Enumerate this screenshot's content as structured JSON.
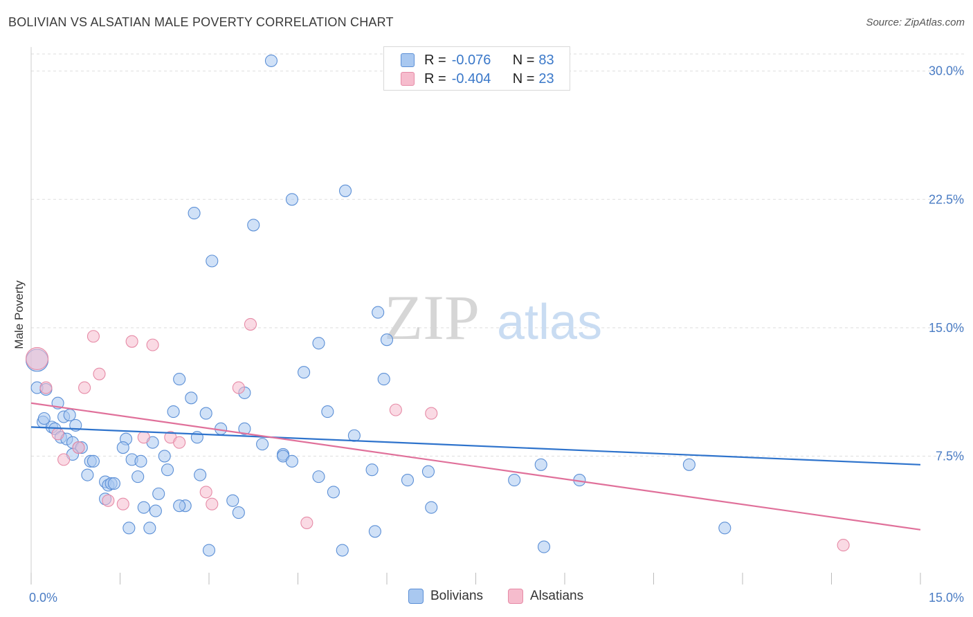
{
  "header": {
    "title": "BOLIVIAN VS ALSATIAN MALE POVERTY CORRELATION CHART",
    "source": "Source: ZipAtlas.com"
  },
  "watermark": {
    "zip": "ZIP",
    "atlas": "atlas"
  },
  "legend": {
    "rows": [
      {
        "r_label": "R =",
        "r_value": "-0.076",
        "n_label": "N =",
        "n_value": "83"
      },
      {
        "r_label": "R =",
        "r_value": "-0.404",
        "n_label": "N =",
        "n_value": "23"
      }
    ]
  },
  "bottom_legend": {
    "bolivians": "Bolivians",
    "alsatians": "Alsatians"
  },
  "colors": {
    "bolivians_fill": "#a9c8f0",
    "bolivians_stroke": "#5b8fd6",
    "bolivians_line": "#2e73cc",
    "alsatians_fill": "#f6bccd",
    "alsatians_stroke": "#e68aa6",
    "alsatians_line": "#e0709a",
    "tick_text": "#4a7cc4",
    "grid": "#dddddd"
  },
  "chart_data": {
    "type": "scatter",
    "title": "BOLIVIAN VS ALSATIAN MALE POVERTY CORRELATION CHART",
    "xlabel": "",
    "ylabel": "Male Poverty",
    "xlim": [
      0,
      15
    ],
    "ylim": [
      0,
      31
    ],
    "x_tick_labels": [
      "0.0%",
      "15.0%"
    ],
    "y_ticks": [
      7.5,
      15.0,
      22.5,
      30.0
    ],
    "y_tick_labels": [
      "7.5%",
      "15.0%",
      "22.5%",
      "30.0%"
    ],
    "grid": true,
    "series": [
      {
        "name": "Bolivians",
        "color": "#a9c8f0",
        "trend": {
          "x": [
            0,
            15
          ],
          "y": [
            9.2,
            7.0
          ]
        },
        "points": [
          {
            "x": 0.1,
            "y": 13.1,
            "big": true
          },
          {
            "x": 0.1,
            "y": 11.5
          },
          {
            "x": 0.25,
            "y": 11.4
          },
          {
            "x": 0.45,
            "y": 10.6
          },
          {
            "x": 0.2,
            "y": 9.5
          },
          {
            "x": 0.22,
            "y": 9.7
          },
          {
            "x": 0.35,
            "y": 9.2
          },
          {
            "x": 0.4,
            "y": 9.1
          },
          {
            "x": 0.55,
            "y": 9.8
          },
          {
            "x": 0.65,
            "y": 9.9
          },
          {
            "x": 0.75,
            "y": 9.3
          },
          {
            "x": 0.5,
            "y": 8.6
          },
          {
            "x": 0.6,
            "y": 8.5
          },
          {
            "x": 0.7,
            "y": 8.3
          },
          {
            "x": 0.8,
            "y": 8.0
          },
          {
            "x": 0.85,
            "y": 8.0
          },
          {
            "x": 0.7,
            "y": 7.6
          },
          {
            "x": 1.0,
            "y": 7.2
          },
          {
            "x": 1.05,
            "y": 7.2
          },
          {
            "x": 0.95,
            "y": 6.4
          },
          {
            "x": 1.25,
            "y": 6.0
          },
          {
            "x": 1.3,
            "y": 5.8
          },
          {
            "x": 1.35,
            "y": 5.9
          },
          {
            "x": 1.4,
            "y": 5.9
          },
          {
            "x": 1.25,
            "y": 5.0
          },
          {
            "x": 1.6,
            "y": 8.5
          },
          {
            "x": 1.55,
            "y": 8.0
          },
          {
            "x": 1.7,
            "y": 7.3
          },
          {
            "x": 1.85,
            "y": 7.2
          },
          {
            "x": 1.8,
            "y": 6.3
          },
          {
            "x": 1.9,
            "y": 4.5
          },
          {
            "x": 1.65,
            "y": 3.3
          },
          {
            "x": 2.0,
            "y": 3.3
          },
          {
            "x": 2.05,
            "y": 8.3
          },
          {
            "x": 2.25,
            "y": 7.5
          },
          {
            "x": 2.3,
            "y": 6.7
          },
          {
            "x": 2.15,
            "y": 5.3
          },
          {
            "x": 2.1,
            "y": 4.3
          },
          {
            "x": 2.4,
            "y": 10.1
          },
          {
            "x": 2.5,
            "y": 12.0
          },
          {
            "x": 2.6,
            "y": 4.6
          },
          {
            "x": 2.5,
            "y": 4.6
          },
          {
            "x": 2.7,
            "y": 10.9
          },
          {
            "x": 2.8,
            "y": 8.6
          },
          {
            "x": 2.85,
            "y": 6.4
          },
          {
            "x": 2.95,
            "y": 10.0
          },
          {
            "x": 3.2,
            "y": 9.1
          },
          {
            "x": 3.0,
            "y": 2.0
          },
          {
            "x": 3.4,
            "y": 4.9
          },
          {
            "x": 3.5,
            "y": 4.2
          },
          {
            "x": 2.75,
            "y": 21.7
          },
          {
            "x": 3.05,
            "y": 18.9
          },
          {
            "x": 3.6,
            "y": 11.2
          },
          {
            "x": 3.6,
            "y": 9.1
          },
          {
            "x": 3.75,
            "y": 21.0
          },
          {
            "x": 3.9,
            "y": 8.2
          },
          {
            "x": 4.05,
            "y": 30.6
          },
          {
            "x": 4.25,
            "y": 7.6
          },
          {
            "x": 4.25,
            "y": 7.5
          },
          {
            "x": 4.4,
            "y": 7.2
          },
          {
            "x": 4.4,
            "y": 22.5
          },
          {
            "x": 4.85,
            "y": 14.1
          },
          {
            "x": 4.85,
            "y": 6.3
          },
          {
            "x": 5.0,
            "y": 10.1
          },
          {
            "x": 5.1,
            "y": 5.4
          },
          {
            "x": 5.25,
            "y": 2.0
          },
          {
            "x": 5.45,
            "y": 8.7
          },
          {
            "x": 5.3,
            "y": 23.0
          },
          {
            "x": 5.75,
            "y": 6.7
          },
          {
            "x": 5.8,
            "y": 3.1
          },
          {
            "x": 5.85,
            "y": 15.9
          },
          {
            "x": 5.95,
            "y": 12.0
          },
          {
            "x": 6.0,
            "y": 14.3
          },
          {
            "x": 6.35,
            "y": 6.1
          },
          {
            "x": 6.7,
            "y": 6.6
          },
          {
            "x": 6.75,
            "y": 4.5
          },
          {
            "x": 8.15,
            "y": 6.1
          },
          {
            "x": 8.6,
            "y": 7.0
          },
          {
            "x": 8.65,
            "y": 2.2
          },
          {
            "x": 9.25,
            "y": 6.1
          },
          {
            "x": 11.1,
            "y": 7.0
          },
          {
            "x": 11.7,
            "y": 3.3
          },
          {
            "x": 4.6,
            "y": 12.4
          }
        ]
      },
      {
        "name": "Alsatians",
        "color": "#f6bccd",
        "trend": {
          "x": [
            0,
            15
          ],
          "y": [
            10.6,
            3.2
          ]
        },
        "points": [
          {
            "x": 0.1,
            "y": 13.2,
            "big": true
          },
          {
            "x": 0.25,
            "y": 11.5
          },
          {
            "x": 0.45,
            "y": 8.8
          },
          {
            "x": 0.55,
            "y": 7.3
          },
          {
            "x": 0.8,
            "y": 8.0
          },
          {
            "x": 0.9,
            "y": 11.5
          },
          {
            "x": 1.05,
            "y": 14.5
          },
          {
            "x": 1.15,
            "y": 12.3
          },
          {
            "x": 1.3,
            "y": 4.9
          },
          {
            "x": 1.55,
            "y": 4.7
          },
          {
            "x": 1.7,
            "y": 14.2
          },
          {
            "x": 1.9,
            "y": 8.6
          },
          {
            "x": 2.05,
            "y": 14.0
          },
          {
            "x": 2.35,
            "y": 8.6
          },
          {
            "x": 2.5,
            "y": 8.3
          },
          {
            "x": 2.95,
            "y": 5.4
          },
          {
            "x": 3.05,
            "y": 4.7
          },
          {
            "x": 3.5,
            "y": 11.5
          },
          {
            "x": 3.7,
            "y": 15.2
          },
          {
            "x": 4.65,
            "y": 3.6
          },
          {
            "x": 6.15,
            "y": 10.2
          },
          {
            "x": 6.75,
            "y": 10.0
          },
          {
            "x": 13.7,
            "y": 2.3
          }
        ]
      }
    ]
  }
}
